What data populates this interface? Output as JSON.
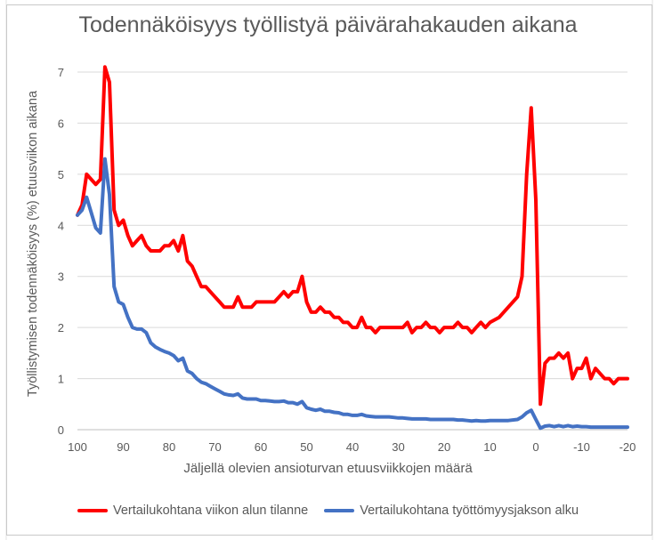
{
  "chart_data": {
    "type": "line",
    "title": "Todennäköisyys työllistyä päivärahakauden aikana",
    "xlabel": "Jäljellä olevien ansioturvan etuusviikkojen määrä",
    "ylabel": "Työllistymisen todennäköisyys (%) etuusviikon aikana",
    "xlim": [
      100,
      -20
    ],
    "ylim": [
      0,
      7
    ],
    "x_ticks": [
      "100",
      "90",
      "80",
      "70",
      "60",
      "50",
      "40",
      "30",
      "20",
      "10",
      "0",
      "-10",
      "-20"
    ],
    "y_ticks": [
      "0",
      "1",
      "2",
      "3",
      "4",
      "5",
      "6",
      "7"
    ],
    "grid": "horizontal",
    "legend_position": "bottom",
    "series": [
      {
        "name": "Vertailukohtana viikon alun tilanne",
        "color": "#ff0000",
        "points": [
          [
            100,
            4.2
          ],
          [
            99,
            4.4
          ],
          [
            98,
            5.0
          ],
          [
            97,
            4.9
          ],
          [
            96,
            4.8
          ],
          [
            95,
            4.9
          ],
          [
            94,
            7.1
          ],
          [
            93,
            6.8
          ],
          [
            92,
            4.3
          ],
          [
            91,
            4.0
          ],
          [
            90,
            4.1
          ],
          [
            89,
            3.8
          ],
          [
            88,
            3.6
          ],
          [
            87,
            3.7
          ],
          [
            86,
            3.8
          ],
          [
            85,
            3.6
          ],
          [
            84,
            3.5
          ],
          [
            83,
            3.5
          ],
          [
            82,
            3.5
          ],
          [
            81,
            3.6
          ],
          [
            80,
            3.6
          ],
          [
            79,
            3.7
          ],
          [
            78,
            3.5
          ],
          [
            77,
            3.8
          ],
          [
            76,
            3.3
          ],
          [
            75,
            3.2
          ],
          [
            74,
            3.0
          ],
          [
            73,
            2.8
          ],
          [
            72,
            2.8
          ],
          [
            71,
            2.7
          ],
          [
            70,
            2.6
          ],
          [
            69,
            2.5
          ],
          [
            68,
            2.4
          ],
          [
            67,
            2.4
          ],
          [
            66,
            2.4
          ],
          [
            65,
            2.6
          ],
          [
            64,
            2.4
          ],
          [
            63,
            2.4
          ],
          [
            62,
            2.4
          ],
          [
            61,
            2.5
          ],
          [
            60,
            2.5
          ],
          [
            59,
            2.5
          ],
          [
            58,
            2.5
          ],
          [
            57,
            2.5
          ],
          [
            56,
            2.6
          ],
          [
            55,
            2.7
          ],
          [
            54,
            2.6
          ],
          [
            53,
            2.7
          ],
          [
            52,
            2.7
          ],
          [
            51,
            3.0
          ],
          [
            50,
            2.5
          ],
          [
            49,
            2.3
          ],
          [
            48,
            2.3
          ],
          [
            47,
            2.4
          ],
          [
            46,
            2.3
          ],
          [
            45,
            2.3
          ],
          [
            44,
            2.2
          ],
          [
            43,
            2.2
          ],
          [
            42,
            2.1
          ],
          [
            41,
            2.1
          ],
          [
            40,
            2.0
          ],
          [
            39,
            2.0
          ],
          [
            38,
            2.2
          ],
          [
            37,
            2.0
          ],
          [
            36,
            2.0
          ],
          [
            35,
            1.9
          ],
          [
            34,
            2.0
          ],
          [
            33,
            2.0
          ],
          [
            32,
            2.0
          ],
          [
            31,
            2.0
          ],
          [
            30,
            2.0
          ],
          [
            29,
            2.0
          ],
          [
            28,
            2.1
          ],
          [
            27,
            1.9
          ],
          [
            26,
            2.0
          ],
          [
            25,
            2.0
          ],
          [
            24,
            2.1
          ],
          [
            23,
            2.0
          ],
          [
            22,
            2.0
          ],
          [
            21,
            1.9
          ],
          [
            20,
            2.0
          ],
          [
            19,
            2.0
          ],
          [
            18,
            2.0
          ],
          [
            17,
            2.1
          ],
          [
            16,
            2.0
          ],
          [
            15,
            2.0
          ],
          [
            14,
            1.9
          ],
          [
            13,
            2.0
          ],
          [
            12,
            2.1
          ],
          [
            11,
            2.0
          ],
          [
            10,
            2.1
          ],
          [
            8,
            2.2
          ],
          [
            6,
            2.4
          ],
          [
            4,
            2.6
          ],
          [
            3,
            3.0
          ],
          [
            2,
            5.0
          ],
          [
            1,
            6.3
          ],
          [
            0,
            4.5
          ],
          [
            -1,
            0.5
          ],
          [
            -2,
            1.3
          ],
          [
            -3,
            1.4
          ],
          [
            -4,
            1.4
          ],
          [
            -5,
            1.5
          ],
          [
            -6,
            1.4
          ],
          [
            -7,
            1.5
          ],
          [
            -8,
            1.0
          ],
          [
            -9,
            1.2
          ],
          [
            -10,
            1.2
          ],
          [
            -11,
            1.4
          ],
          [
            -12,
            1.0
          ],
          [
            -13,
            1.2
          ],
          [
            -14,
            1.1
          ],
          [
            -15,
            1.0
          ],
          [
            -16,
            1.0
          ],
          [
            -17,
            0.9
          ],
          [
            -18,
            1.0
          ],
          [
            -19,
            1.0
          ],
          [
            -20,
            1.0
          ]
        ]
      },
      {
        "name": "Vertailukohtana työttömyysjakson alku",
        "color": "#4472c4",
        "points": [
          [
            100,
            4.2
          ],
          [
            99,
            4.3
          ],
          [
            98,
            4.55
          ],
          [
            97,
            4.25
          ],
          [
            96,
            3.95
          ],
          [
            95,
            3.85
          ],
          [
            94,
            5.3
          ],
          [
            93,
            4.6
          ],
          [
            92,
            2.8
          ],
          [
            91,
            2.5
          ],
          [
            90,
            2.45
          ],
          [
            89,
            2.2
          ],
          [
            88,
            2.0
          ],
          [
            87,
            1.97
          ],
          [
            86,
            1.97
          ],
          [
            85,
            1.9
          ],
          [
            84,
            1.7
          ],
          [
            83,
            1.62
          ],
          [
            82,
            1.57
          ],
          [
            81,
            1.53
          ],
          [
            80,
            1.5
          ],
          [
            79,
            1.45
          ],
          [
            78,
            1.35
          ],
          [
            77,
            1.4
          ],
          [
            76,
            1.15
          ],
          [
            75,
            1.1
          ],
          [
            74,
            1.0
          ],
          [
            73,
            0.93
          ],
          [
            72,
            0.9
          ],
          [
            71,
            0.85
          ],
          [
            70,
            0.8
          ],
          [
            69,
            0.75
          ],
          [
            68,
            0.7
          ],
          [
            67,
            0.68
          ],
          [
            66,
            0.67
          ],
          [
            65,
            0.7
          ],
          [
            64,
            0.62
          ],
          [
            63,
            0.6
          ],
          [
            62,
            0.6
          ],
          [
            61,
            0.6
          ],
          [
            60,
            0.57
          ],
          [
            59,
            0.57
          ],
          [
            58,
            0.56
          ],
          [
            57,
            0.55
          ],
          [
            56,
            0.55
          ],
          [
            55,
            0.56
          ],
          [
            54,
            0.53
          ],
          [
            53,
            0.53
          ],
          [
            52,
            0.5
          ],
          [
            51,
            0.55
          ],
          [
            50,
            0.43
          ],
          [
            49,
            0.4
          ],
          [
            48,
            0.38
          ],
          [
            47,
            0.4
          ],
          [
            46,
            0.36
          ],
          [
            45,
            0.36
          ],
          [
            44,
            0.34
          ],
          [
            43,
            0.33
          ],
          [
            42,
            0.3
          ],
          [
            41,
            0.3
          ],
          [
            40,
            0.28
          ],
          [
            39,
            0.28
          ],
          [
            38,
            0.3
          ],
          [
            37,
            0.27
          ],
          [
            36,
            0.26
          ],
          [
            35,
            0.25
          ],
          [
            34,
            0.25
          ],
          [
            33,
            0.25
          ],
          [
            32,
            0.25
          ],
          [
            31,
            0.24
          ],
          [
            30,
            0.23
          ],
          [
            29,
            0.23
          ],
          [
            28,
            0.22
          ],
          [
            27,
            0.21
          ],
          [
            26,
            0.21
          ],
          [
            25,
            0.21
          ],
          [
            24,
            0.21
          ],
          [
            23,
            0.2
          ],
          [
            22,
            0.2
          ],
          [
            21,
            0.2
          ],
          [
            20,
            0.2
          ],
          [
            19,
            0.2
          ],
          [
            18,
            0.2
          ],
          [
            17,
            0.19
          ],
          [
            16,
            0.19
          ],
          [
            15,
            0.18
          ],
          [
            14,
            0.17
          ],
          [
            13,
            0.18
          ],
          [
            12,
            0.17
          ],
          [
            11,
            0.17
          ],
          [
            10,
            0.18
          ],
          [
            8,
            0.18
          ],
          [
            6,
            0.18
          ],
          [
            4,
            0.2
          ],
          [
            3,
            0.25
          ],
          [
            2,
            0.33
          ],
          [
            1,
            0.38
          ],
          [
            0,
            0.2
          ],
          [
            -1,
            0.03
          ],
          [
            -2,
            0.07
          ],
          [
            -3,
            0.08
          ],
          [
            -4,
            0.06
          ],
          [
            -5,
            0.08
          ],
          [
            -6,
            0.06
          ],
          [
            -7,
            0.08
          ],
          [
            -8,
            0.06
          ],
          [
            -9,
            0.07
          ],
          [
            -10,
            0.06
          ],
          [
            -11,
            0.06
          ],
          [
            -12,
            0.05
          ],
          [
            -13,
            0.05
          ],
          [
            -14,
            0.05
          ],
          [
            -15,
            0.05
          ],
          [
            -16,
            0.05
          ],
          [
            -17,
            0.05
          ],
          [
            -18,
            0.05
          ],
          [
            -19,
            0.05
          ],
          [
            -20,
            0.05
          ]
        ]
      }
    ]
  }
}
